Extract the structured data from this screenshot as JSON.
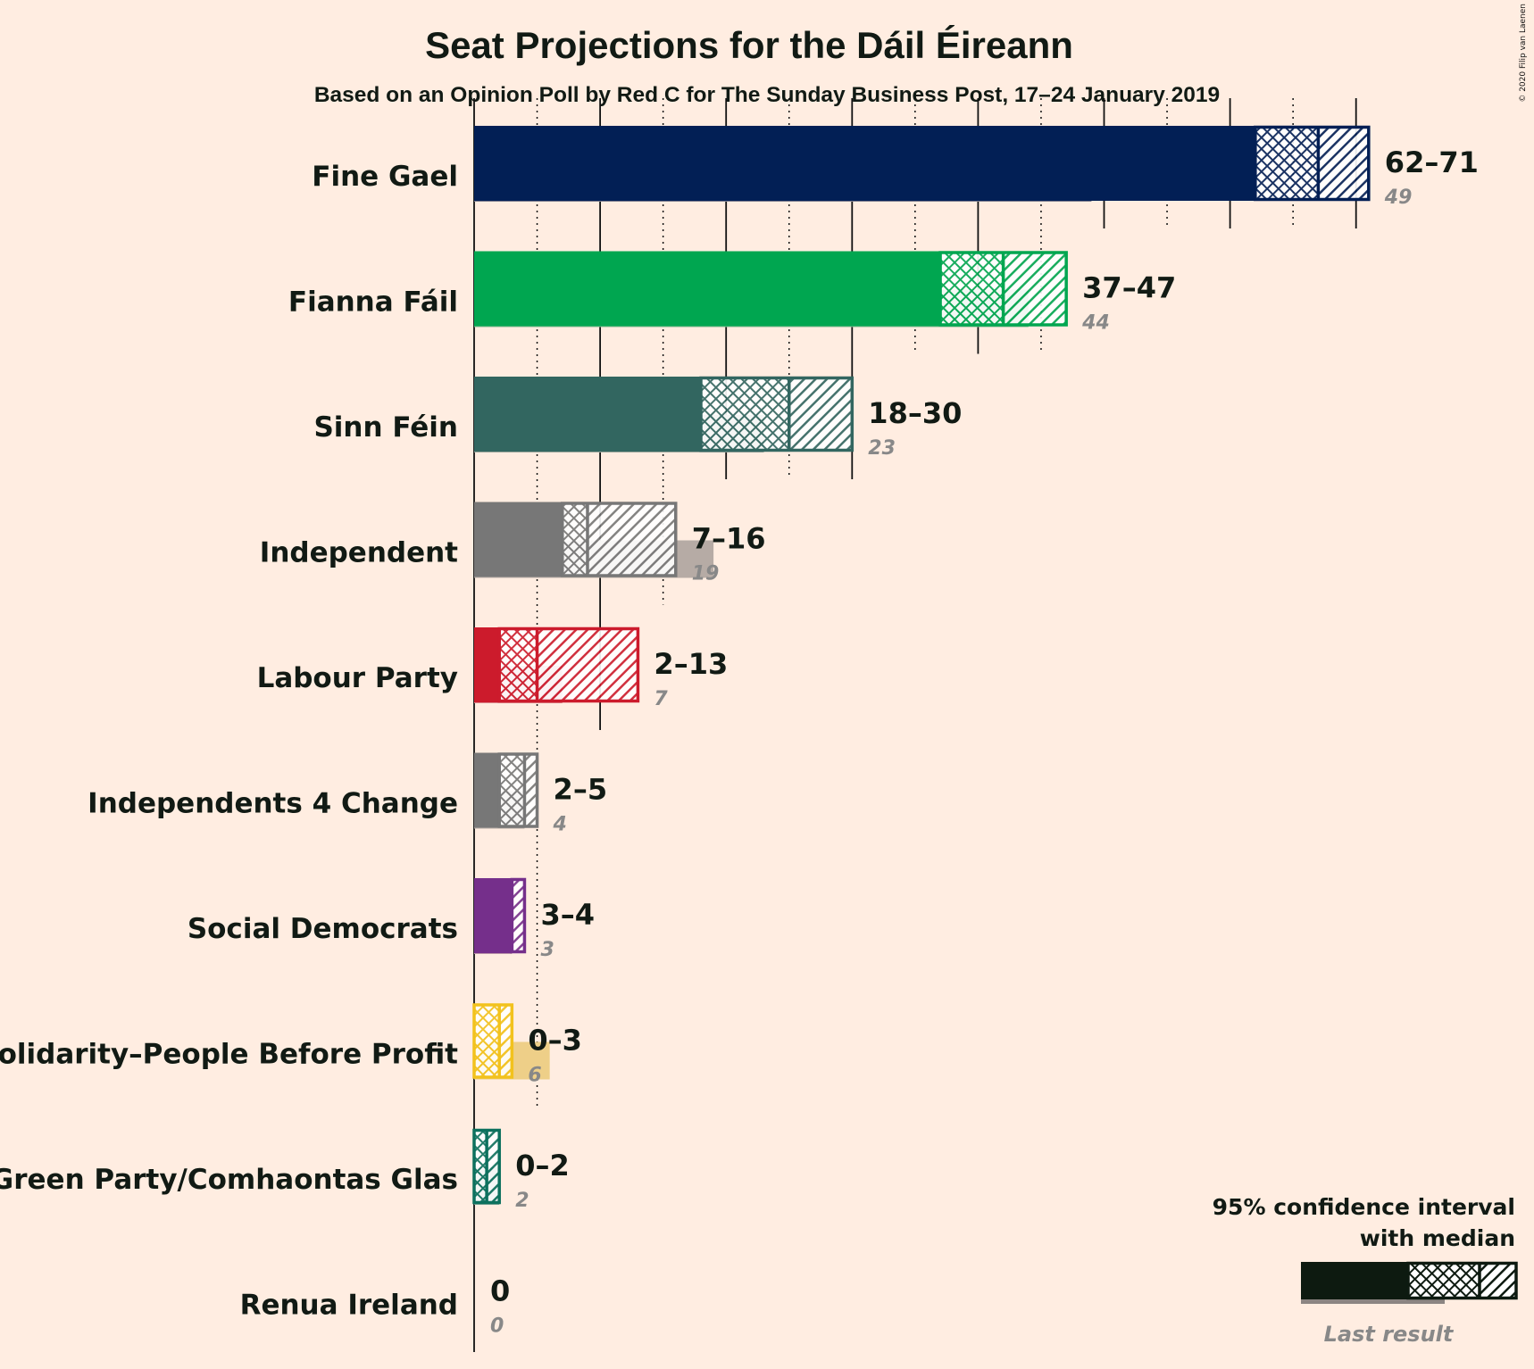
{
  "title": "Seat Projections for the Dáil Éireann",
  "subtitle": "Based on an Opinion Poll by Red C for The Sunday Business Post, 17–24 January 2019",
  "copyright": "© 2020 Filip van Laenen",
  "legend": {
    "title_line1": "95% confidence interval",
    "title_line2": "with median",
    "last_result_label": "Last result",
    "color": "#0d1a10",
    "placement": "bottom-right"
  },
  "chart_data": {
    "type": "bar",
    "orientation": "horizontal",
    "xlim": [
      0,
      75
    ],
    "gridlines": [
      5,
      10,
      15,
      20,
      25,
      30,
      35,
      40,
      45,
      50,
      55,
      60,
      65,
      70
    ],
    "majority_style": "solid every 10, dotted every 5",
    "parties": [
      {
        "name": "Fine Gael",
        "low": 62,
        "median": 67,
        "high": 71,
        "range_label": "62–71",
        "last": 49,
        "last_label": "49",
        "color": "#021f55",
        "last_color": "#808090"
      },
      {
        "name": "Fianna Fáil",
        "low": 37,
        "median": 42,
        "high": 47,
        "range_label": "37–47",
        "last": 44,
        "last_label": "44",
        "color": "#00a650",
        "last_color": "#80b890"
      },
      {
        "name": "Sinn Féin",
        "low": 18,
        "median": 25,
        "high": 30,
        "range_label": "18–30",
        "last": 23,
        "last_label": "23",
        "color": "#326660",
        "last_color": "#98a39a"
      },
      {
        "name": "Independent",
        "low": 7,
        "median": 9,
        "high": 16,
        "range_label": "7–16",
        "last": 19,
        "last_label": "19",
        "color": "#777777",
        "last_color": "#b6aba5"
      },
      {
        "name": "Labour Party",
        "low": 2,
        "median": 5,
        "high": 13,
        "range_label": "2–13",
        "last": 7,
        "last_label": "7",
        "color": "#cc1b2c",
        "last_color": "#d9868a"
      },
      {
        "name": "Independents 4 Change",
        "low": 2,
        "median": 4,
        "high": 5,
        "range_label": "2–5",
        "last": 4,
        "last_label": "4",
        "color": "#777777",
        "last_color": "#b6aba5"
      },
      {
        "name": "Social Democrats",
        "low": 3,
        "median": 3,
        "high": 4,
        "range_label": "3–4",
        "last": 3,
        "last_label": "3",
        "color": "#752f8b",
        "last_color": "#b992a8"
      },
      {
        "name": "Solidarity–People Before Profit",
        "low": 0,
        "median": 2,
        "high": 3,
        "range_label": "0–3",
        "last": 6,
        "last_label": "6",
        "color": "#f2c21d",
        "last_color": "#eecf88"
      },
      {
        "name": "Green Party/Comhaontas Glas",
        "low": 0,
        "median": 1,
        "high": 2,
        "range_label": "0–2",
        "last": 2,
        "last_label": "2",
        "color": "#0d715e",
        "last_color": "#88a89a"
      },
      {
        "name": "Renua Ireland",
        "low": 0,
        "median": 0,
        "high": 0,
        "range_label": "0",
        "last": 0,
        "last_label": "0",
        "color": "#ee6124",
        "last_color": "#e0a080"
      }
    ]
  }
}
